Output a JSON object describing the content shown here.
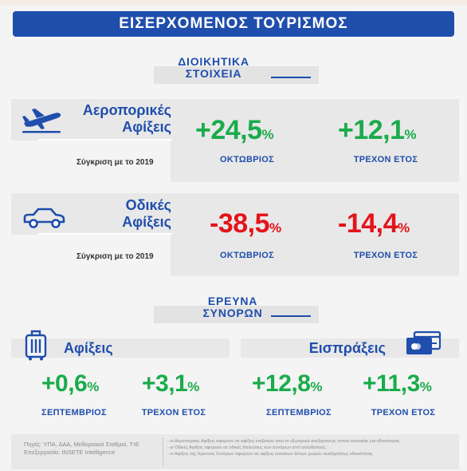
{
  "title": "ΕΙΣΕΡΧΟΜΕΝΟΣ ΤΟΥΡΙΣΜΟΣ",
  "admin": {
    "heading_line1": "ΔΙΟΙΚΗΤΙΚΑ",
    "heading_line2": "ΣΤΟΙΧΕΙΑ"
  },
  "air": {
    "label_line1": "Αεροπορικές",
    "label_line2": "Αφίξεις",
    "compare": "Σύγκριση με το 2019",
    "month_value": "+24,5",
    "month_label": "ΟΚΤΩΒΡΙΟΣ",
    "ytd_value": "+12,1",
    "ytd_label": "ΤΡΕΧΟΝ ΕΤΟΣ",
    "icon": "airplane-icon"
  },
  "road": {
    "label_line1": "Οδικές",
    "label_line2": "Αφίξεις",
    "compare": "Σύγκριση με το 2019",
    "month_value": "-38,5",
    "month_label": "ΟΚΤΩΒΡΙΟΣ",
    "ytd_value": "-14,4",
    "ytd_label": "ΤΡΕΧΟΝ ΕΤΟΣ",
    "icon": "car-icon"
  },
  "survey": {
    "heading_line1": "ΕΡΕΥΝΑ",
    "heading_line2": "ΣΥΝΟΡΩΝ"
  },
  "arrivals": {
    "label": "Αφίξεις",
    "month_value": "+0,6",
    "month_label": "ΣΕΠΤΕΜΒΡΙΟΣ",
    "ytd_value": "+3,1",
    "ytd_label": "ΤΡΕΧΟΝ ΕΤΟΣ",
    "icon": "suitcase-icon"
  },
  "receipts": {
    "label": "Εισπράξεις",
    "month_value": "+12,8",
    "month_label": "ΣΕΠΤΕΜΒΡΙΟΣ",
    "ytd_value": "+11,3",
    "ytd_label": "ΤΡΕΧΟΝ ΕΤΟΣ",
    "icon": "credit-card-icon"
  },
  "pct_sign": "%",
  "footer": {
    "sources": "Πηγές: ΥΠΑ, ΔΑΑ, Μεθοριακοί Σταθμοί, ΤτΕ",
    "processing": "Επεξεργασία: INSETE Intelligence",
    "note1": "- οι Αεροπορικές Αφίξεις αφορούν σε αφίξεις επιβατών από το εξωτερικό ανεξαρτήτως τόπου κατοικίας και εθνικότητας",
    "note2": "- οι Οδικές Αφίξεις αφορούν σε οδικές διελεύσεις των συνόρων από αλλοδαπούς",
    "note3": "- οι Αφίξεις της Έρευνας Συνόρων αφορούν σε αφίξεις κατοίκων άλλων χωρών ανεξαρτήτως εθνικότητας"
  },
  "colors": {
    "primary_blue": "#1f4eac",
    "positive_green": "#1aab4b",
    "negative_red": "#e3141b"
  }
}
